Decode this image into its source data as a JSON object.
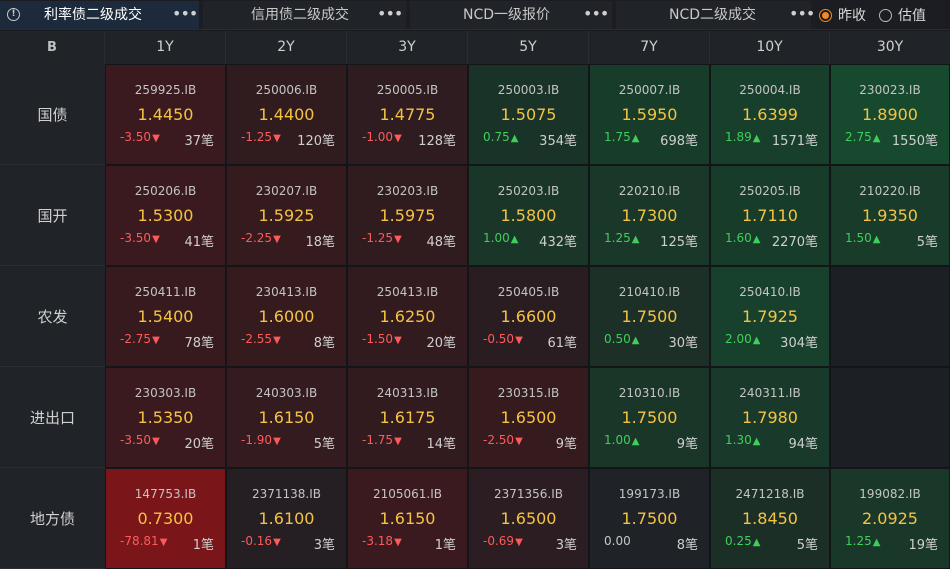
{
  "tabs": [
    {
      "label": "利率债二级成交",
      "active": true
    },
    {
      "label": "信用债二级成交",
      "active": false
    },
    {
      "label": "NCD一级报价",
      "active": false
    },
    {
      "label": "NCD二级成交",
      "active": false
    }
  ],
  "more_label": "•••",
  "radios": [
    {
      "label": "昨收",
      "checked": true
    },
    {
      "label": "估值",
      "checked": false
    }
  ],
  "corner_icon": "B",
  "columns": [
    "1Y",
    "2Y",
    "3Y",
    "5Y",
    "7Y",
    "10Y",
    "30Y"
  ],
  "rows": [
    {
      "label": "国债",
      "cells": [
        {
          "code": "259925.IB",
          "yield": "1.4450",
          "change": "-3.50",
          "dir": "down",
          "count": "37笔",
          "bg": "#3a1a1e"
        },
        {
          "code": "250006.IB",
          "yield": "1.4400",
          "change": "-1.25",
          "dir": "down",
          "count": "120笔",
          "bg": "#301b1f"
        },
        {
          "code": "250005.IB",
          "yield": "1.4775",
          "change": "-1.00",
          "dir": "down",
          "count": "128笔",
          "bg": "#2e1c20"
        },
        {
          "code": "250003.IB",
          "yield": "1.5075",
          "change": "0.75",
          "dir": "up",
          "count": "354笔",
          "bg": "#1a3328"
        },
        {
          "code": "250007.IB",
          "yield": "1.5950",
          "change": "1.75",
          "dir": "up",
          "count": "698笔",
          "bg": "#173d2a"
        },
        {
          "code": "250004.IB",
          "yield": "1.6399",
          "change": "1.89",
          "dir": "up",
          "count": "1571笔",
          "bg": "#173f2b"
        },
        {
          "code": "230023.IB",
          "yield": "1.8900",
          "change": "2.75",
          "dir": "up",
          "count": "1550笔",
          "bg": "#17492e"
        }
      ]
    },
    {
      "label": "国开",
      "cells": [
        {
          "code": "250206.IB",
          "yield": "1.5300",
          "change": "-3.50",
          "dir": "down",
          "count": "41笔",
          "bg": "#3a1a1e"
        },
        {
          "code": "230207.IB",
          "yield": "1.5925",
          "change": "-2.25",
          "dir": "down",
          "count": "18笔",
          "bg": "#351a1e"
        },
        {
          "code": "230203.IB",
          "yield": "1.5975",
          "change": "-1.25",
          "dir": "down",
          "count": "48笔",
          "bg": "#301b1f"
        },
        {
          "code": "250203.IB",
          "yield": "1.5800",
          "change": "1.00",
          "dir": "up",
          "count": "432笔",
          "bg": "#1a3629"
        },
        {
          "code": "220210.IB",
          "yield": "1.7300",
          "change": "1.25",
          "dir": "up",
          "count": "125笔",
          "bg": "#193829"
        },
        {
          "code": "250205.IB",
          "yield": "1.7110",
          "change": "1.60",
          "dir": "up",
          "count": "2270笔",
          "bg": "#173c2a"
        },
        {
          "code": "210220.IB",
          "yield": "1.9350",
          "change": "1.50",
          "dir": "up",
          "count": "5笔",
          "bg": "#183b2a"
        }
      ]
    },
    {
      "label": "农发",
      "cells": [
        {
          "code": "250411.IB",
          "yield": "1.5400",
          "change": "-2.75",
          "dir": "down",
          "count": "78笔",
          "bg": "#361a1e"
        },
        {
          "code": "230413.IB",
          "yield": "1.6000",
          "change": "-2.55",
          "dir": "down",
          "count": "8笔",
          "bg": "#351a1e"
        },
        {
          "code": "250413.IB",
          "yield": "1.6250",
          "change": "-1.50",
          "dir": "down",
          "count": "20笔",
          "bg": "#311b1f"
        },
        {
          "code": "250405.IB",
          "yield": "1.6600",
          "change": "-0.50",
          "dir": "down",
          "count": "61笔",
          "bg": "#2a1d21"
        },
        {
          "code": "210410.IB",
          "yield": "1.7500",
          "change": "0.50",
          "dir": "up",
          "count": "30笔",
          "bg": "#1c3027"
        },
        {
          "code": "250410.IB",
          "yield": "1.7925",
          "change": "2.00",
          "dir": "up",
          "count": "304笔",
          "bg": "#17412c"
        },
        {
          "code": "",
          "yield": "",
          "change": "",
          "dir": "none",
          "count": "",
          "bg": "#1c1f24"
        }
      ]
    },
    {
      "label": "进出口",
      "cells": [
        {
          "code": "230303.IB",
          "yield": "1.5350",
          "change": "-3.50",
          "dir": "down",
          "count": "20笔",
          "bg": "#3a1a1e"
        },
        {
          "code": "240303.IB",
          "yield": "1.6150",
          "change": "-1.90",
          "dir": "down",
          "count": "5笔",
          "bg": "#331b1f"
        },
        {
          "code": "240313.IB",
          "yield": "1.6175",
          "change": "-1.75",
          "dir": "down",
          "count": "14笔",
          "bg": "#321b1f"
        },
        {
          "code": "230315.IB",
          "yield": "1.6500",
          "change": "-2.50",
          "dir": "down",
          "count": "9笔",
          "bg": "#351a1e"
        },
        {
          "code": "210310.IB",
          "yield": "1.7500",
          "change": "1.00",
          "dir": "up",
          "count": "9笔",
          "bg": "#1a3629"
        },
        {
          "code": "240311.IB",
          "yield": "1.7980",
          "change": "1.30",
          "dir": "up",
          "count": "94笔",
          "bg": "#19392a"
        },
        {
          "code": "",
          "yield": "",
          "change": "",
          "dir": "none",
          "count": "",
          "bg": "#1c1f24"
        }
      ]
    },
    {
      "label": "地方债",
      "cells": [
        {
          "code": "147753.IB",
          "yield": "0.7300",
          "change": "-78.81",
          "dir": "down",
          "count": "1笔",
          "bg": "#7a1519"
        },
        {
          "code": "2371138.IB",
          "yield": "1.6100",
          "change": "-0.16",
          "dir": "down",
          "count": "3笔",
          "bg": "#251e22"
        },
        {
          "code": "2105061.IB",
          "yield": "1.6150",
          "change": "-3.18",
          "dir": "down",
          "count": "1笔",
          "bg": "#3a1a1e"
        },
        {
          "code": "2371356.IB",
          "yield": "1.6500",
          "change": "-0.69",
          "dir": "down",
          "count": "3笔",
          "bg": "#2b1d21"
        },
        {
          "code": "199173.IB",
          "yield": "1.7500",
          "change": "0.00",
          "dir": "flat",
          "count": "8笔",
          "bg": "#1f2227"
        },
        {
          "code": "2471218.IB",
          "yield": "1.8450",
          "change": "0.25",
          "dir": "up",
          "count": "5笔",
          "bg": "#1c2f27"
        },
        {
          "code": "199082.IB",
          "yield": "2.0925",
          "change": "1.25",
          "dir": "up",
          "count": "19笔",
          "bg": "#193829"
        }
      ]
    }
  ]
}
